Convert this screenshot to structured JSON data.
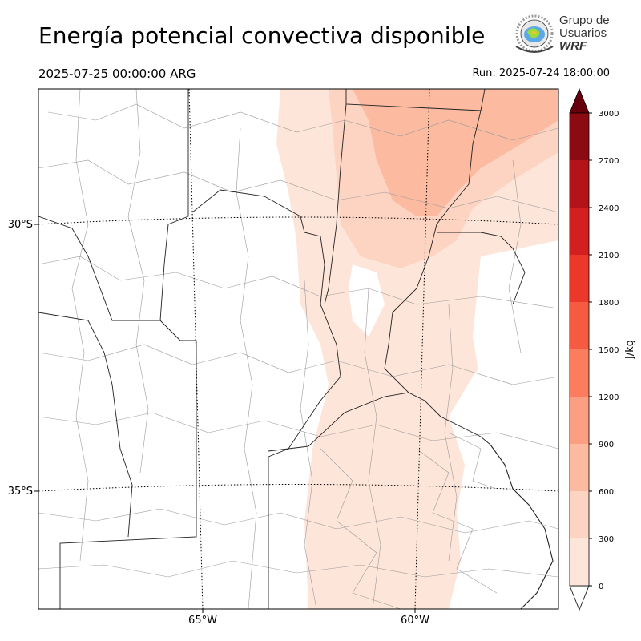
{
  "header": {
    "title": "Energía potencial convectiva disponible",
    "valid_time": "2025-07-25 00:00:00 ARG",
    "run_time": "Run: 2025-07-24 18:00:00"
  },
  "logo": {
    "line1": "Grupo de",
    "line2": "Usuarios",
    "line3": "WRF"
  },
  "map": {
    "lat_labels": [
      "30°S",
      "35°S"
    ],
    "lon_labels": [
      "65°W",
      "60°W"
    ],
    "field": "CAPE",
    "colormap": "Reds"
  },
  "colorbar": {
    "label": "J/kg",
    "ticks": [
      "0",
      "300",
      "600",
      "900",
      "1200",
      "1500",
      "1800",
      "2100",
      "2400",
      "2700",
      "3000"
    ],
    "colors": [
      "#fee5d9",
      "#fdd3c2",
      "#fcbba1",
      "#fc9e82",
      "#fb7d5e",
      "#f65a41",
      "#ec372b",
      "#d21f20",
      "#b41419",
      "#8c0b13"
    ],
    "over_color": "#67000d",
    "under_color": "#ffffff"
  }
}
